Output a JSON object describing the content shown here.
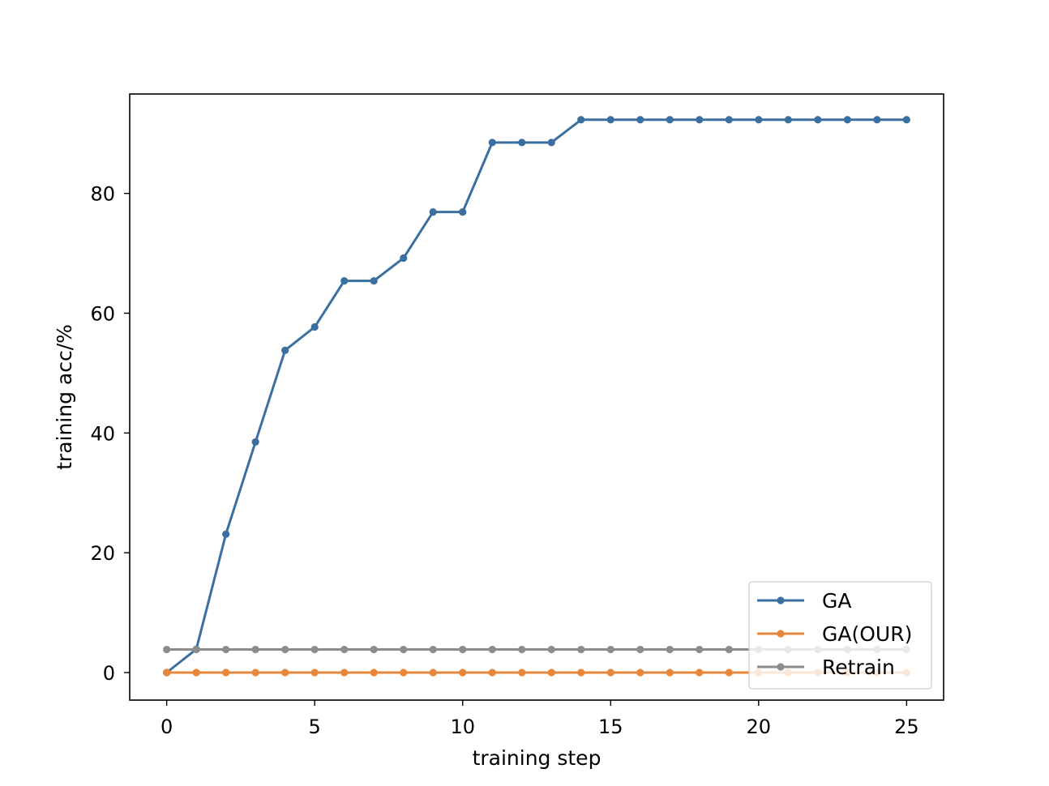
{
  "chart_data": {
    "type": "line",
    "title": "",
    "xlabel": "training step",
    "ylabel": "training acc/%",
    "xlim": [
      -1.25,
      26.25
    ],
    "ylim": [
      -4.6,
      96.6
    ],
    "xticks": [
      0,
      5,
      10,
      15,
      20,
      25
    ],
    "yticks": [
      0,
      20,
      40,
      60,
      80
    ],
    "grid": false,
    "legend": "lower-right",
    "x": [
      0,
      1,
      2,
      3,
      4,
      5,
      6,
      7,
      8,
      9,
      10,
      11,
      12,
      13,
      14,
      15,
      16,
      17,
      18,
      19,
      20,
      21,
      22,
      23,
      24,
      25
    ],
    "series": [
      {
        "name": "GA",
        "color": "#3b6fa0",
        "values": [
          0,
          3.9,
          23.1,
          38.5,
          53.8,
          57.7,
          65.4,
          65.4,
          69.2,
          76.9,
          76.9,
          88.5,
          88.5,
          88.5,
          92.3,
          92.3,
          92.3,
          92.3,
          92.3,
          92.3,
          92.3,
          92.3,
          92.3,
          92.3,
          92.3,
          92.3
        ]
      },
      {
        "name": "GA(OUR)",
        "color": "#e8873a",
        "values": [
          0,
          0,
          0,
          0,
          0,
          0,
          0,
          0,
          0,
          0,
          0,
          0,
          0,
          0,
          0,
          0,
          0,
          0,
          0,
          0,
          0,
          0,
          0,
          0,
          0,
          0
        ]
      },
      {
        "name": "Retrain",
        "color": "#8c8c8c",
        "values": [
          3.85,
          3.85,
          3.85,
          3.85,
          3.85,
          3.85,
          3.85,
          3.85,
          3.85,
          3.85,
          3.85,
          3.85,
          3.85,
          3.85,
          3.85,
          3.85,
          3.85,
          3.85,
          3.85,
          3.85,
          3.85,
          3.85,
          3.85,
          3.85,
          3.85,
          3.85
        ]
      }
    ]
  }
}
